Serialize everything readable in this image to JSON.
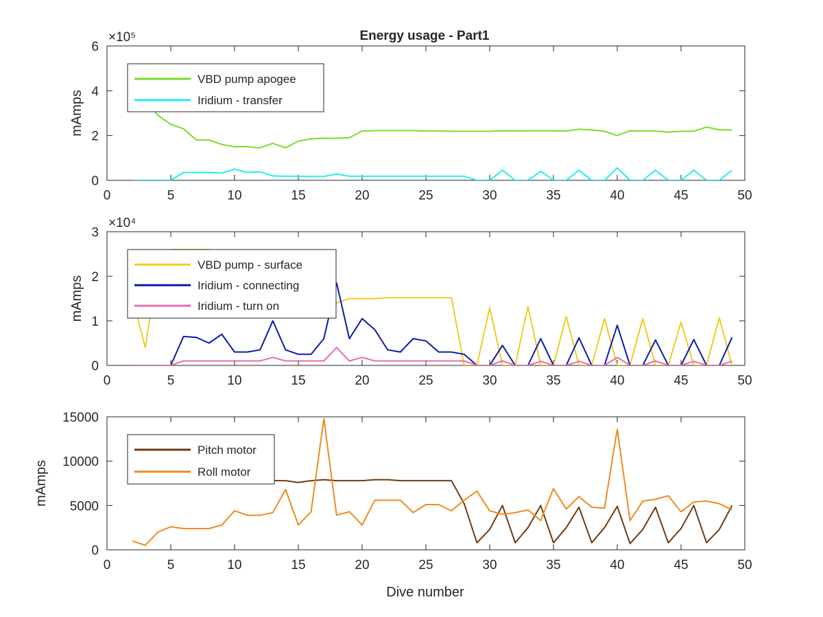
{
  "figure": {
    "title": "Energy usage - Part1",
    "xlabel": "Dive number"
  },
  "chart_data": [
    {
      "type": "line",
      "ylabel": "mAmps",
      "exponent_label": "×10⁵",
      "ylim": [
        0,
        600000
      ],
      "xlim": [
        0,
        50
      ],
      "xticks": [
        0,
        5,
        10,
        15,
        20,
        25,
        30,
        35,
        40,
        45,
        50
      ],
      "yticks": [
        0,
        200000,
        400000,
        600000
      ],
      "yticklabels": [
        "0",
        "2",
        "4",
        "6"
      ],
      "legend_position": "top-left",
      "series": [
        {
          "name": "VBD pump apogee",
          "color": "#77dd22",
          "x": [
            2,
            3,
            4,
            5,
            6,
            7,
            8,
            9,
            10,
            11,
            12,
            13,
            14,
            15,
            16,
            17,
            18,
            19,
            20,
            21,
            22,
            23,
            24,
            25,
            26,
            27,
            28,
            29,
            30,
            31,
            32,
            33,
            34,
            35,
            36,
            37,
            38,
            39,
            40,
            41,
            42,
            43,
            44,
            45,
            46,
            47,
            48,
            49
          ],
          "y": [
            430000,
            360000,
            290000,
            250000,
            230000,
            180000,
            180000,
            160000,
            150000,
            150000,
            145000,
            165000,
            145000,
            175000,
            185000,
            188000,
            188000,
            190000,
            220000,
            222000,
            222000,
            222000,
            222000,
            220000,
            220000,
            219000,
            219000,
            219000,
            219000,
            221000,
            220000,
            221000,
            221000,
            221000,
            220000,
            228000,
            225000,
            219000,
            200000,
            221000,
            220000,
            220000,
            215000,
            219000,
            219000,
            238000,
            225000,
            225000
          ]
        },
        {
          "name": "Iridium - transfer",
          "color": "#22eeee",
          "x": [
            2,
            3,
            4,
            5,
            6,
            7,
            8,
            9,
            10,
            11,
            12,
            13,
            14,
            15,
            16,
            17,
            18,
            19,
            20,
            21,
            22,
            23,
            24,
            25,
            26,
            27,
            28,
            29,
            30,
            31,
            32,
            33,
            34,
            35,
            36,
            37,
            38,
            39,
            40,
            41,
            42,
            43,
            44,
            45,
            46,
            47,
            48,
            49
          ],
          "y": [
            0,
            0,
            0,
            0,
            35000,
            35000,
            35000,
            32000,
            50000,
            35000,
            38000,
            20000,
            18000,
            18000,
            17000,
            17000,
            28000,
            18000,
            18000,
            18000,
            18000,
            18000,
            18000,
            18000,
            18000,
            18000,
            18000,
            0,
            0,
            45000,
            0,
            0,
            40000,
            0,
            0,
            45000,
            0,
            0,
            55000,
            0,
            0,
            45000,
            0,
            0,
            45000,
            0,
            0,
            45000
          ]
        }
      ]
    },
    {
      "type": "line",
      "ylabel": "mAmps",
      "exponent_label": "×10⁴",
      "ylim": [
        0,
        30000
      ],
      "xlim": [
        0,
        50
      ],
      "xticks": [
        0,
        5,
        10,
        15,
        20,
        25,
        30,
        35,
        40,
        45,
        50
      ],
      "yticks": [
        0,
        10000,
        20000,
        30000
      ],
      "yticklabels": [
        "0",
        "1",
        "2",
        "3"
      ],
      "legend_position": "top-left",
      "series": [
        {
          "name": "VBD pump - surface",
          "color": "#eecc22",
          "x": [
            2,
            3,
            4,
            5,
            6,
            7,
            8,
            9,
            10,
            11,
            12,
            13,
            14,
            15,
            16,
            17,
            18,
            19,
            20,
            21,
            22,
            23,
            24,
            25,
            26,
            27,
            28,
            29,
            30,
            31,
            32,
            33,
            34,
            35,
            36,
            37,
            38,
            39,
            40,
            41,
            42,
            43,
            44,
            45,
            46,
            47,
            48,
            49
          ],
          "y": [
            15000,
            4000,
            22000,
            26000,
            26000,
            26000,
            26000,
            25000,
            25000,
            25000,
            25000,
            25000,
            25000,
            25000,
            25000,
            14000,
            14000,
            15000,
            15000,
            15000,
            15200,
            15200,
            15200,
            15200,
            15200,
            15200,
            0,
            0,
            13000,
            0,
            0,
            13200,
            0,
            0,
            11000,
            0,
            0,
            10500,
            0,
            0,
            10500,
            0,
            0,
            9700,
            0,
            0,
            10700,
            0
          ]
        },
        {
          "name": "Iridium - connecting",
          "color": "#0a1aaa",
          "x": [
            2,
            3,
            4,
            5,
            6,
            7,
            8,
            9,
            10,
            11,
            12,
            13,
            14,
            15,
            16,
            17,
            18,
            19,
            20,
            21,
            22,
            23,
            24,
            25,
            26,
            27,
            28,
            29,
            30,
            31,
            32,
            33,
            34,
            35,
            36,
            37,
            38,
            39,
            40,
            41,
            42,
            43,
            44,
            45,
            46,
            47,
            48,
            49
          ],
          "y": [
            0,
            0,
            0,
            0,
            6500,
            6300,
            5000,
            7000,
            3000,
            3000,
            3500,
            10000,
            3500,
            2500,
            2500,
            6000,
            18500,
            6000,
            10500,
            8000,
            3500,
            3000,
            6000,
            5500,
            3000,
            3000,
            2500,
            0,
            0,
            4500,
            0,
            0,
            6000,
            0,
            0,
            6200,
            0,
            0,
            9000,
            0,
            0,
            5700,
            0,
            0,
            5800,
            0,
            0,
            6300
          ]
        },
        {
          "name": "Iridium - turn on",
          "color": "#e86ab0",
          "x": [
            2,
            3,
            4,
            5,
            6,
            7,
            8,
            9,
            10,
            11,
            12,
            13,
            14,
            15,
            16,
            17,
            18,
            19,
            20,
            21,
            22,
            23,
            24,
            25,
            26,
            27,
            28,
            29,
            30,
            31,
            32,
            33,
            34,
            35,
            36,
            37,
            38,
            39,
            40,
            41,
            42,
            43,
            44,
            45,
            46,
            47,
            48,
            49
          ],
          "y": [
            0,
            0,
            0,
            0,
            1000,
            1000,
            1000,
            1000,
            1000,
            1000,
            1000,
            1800,
            1000,
            1000,
            1000,
            1000,
            4000,
            1000,
            1800,
            1000,
            1000,
            1000,
            1000,
            1000,
            1000,
            1000,
            1000,
            0,
            0,
            1000,
            0,
            0,
            900,
            0,
            0,
            900,
            0,
            0,
            1800,
            0,
            0,
            1000,
            0,
            0,
            900,
            0,
            0,
            900
          ]
        }
      ]
    },
    {
      "type": "line",
      "ylabel": "mAmps",
      "ylim": [
        0,
        15000
      ],
      "xlim": [
        0,
        50
      ],
      "xticks": [
        0,
        5,
        10,
        15,
        20,
        25,
        30,
        35,
        40,
        45,
        50
      ],
      "yticks": [
        0,
        5000,
        10000,
        15000
      ],
      "yticklabels": [
        "0",
        "5000",
        "10000",
        "15000"
      ],
      "legend_position": "top-left",
      "series": [
        {
          "name": "Pitch motor",
          "color": "#6e3a10",
          "x": [
            2,
            3,
            4,
            5,
            6,
            7,
            8,
            9,
            10,
            11,
            12,
            13,
            14,
            15,
            16,
            17,
            18,
            19,
            20,
            21,
            22,
            23,
            24,
            25,
            26,
            27,
            28,
            29,
            30,
            31,
            32,
            33,
            34,
            35,
            36,
            37,
            38,
            39,
            40,
            41,
            42,
            43,
            44,
            45,
            46,
            47,
            48,
            49
          ],
          "y": [
            7800,
            7800,
            7800,
            7800,
            7800,
            7800,
            7800,
            7800,
            7800,
            7800,
            7800,
            7800,
            7800,
            7600,
            7800,
            7900,
            7800,
            7800,
            7800,
            7900,
            7900,
            7800,
            7800,
            7800,
            7800,
            7800,
            5200,
            800,
            2300,
            5000,
            800,
            2500,
            5000,
            800,
            2500,
            4800,
            800,
            2500,
            4900,
            700,
            2300,
            4800,
            800,
            2400,
            5000,
            800,
            2300,
            5000
          ]
        },
        {
          "name": "Roll motor",
          "color": "#ee8a1c",
          "x": [
            2,
            3,
            4,
            5,
            6,
            7,
            8,
            9,
            10,
            11,
            12,
            13,
            14,
            15,
            16,
            17,
            18,
            19,
            20,
            21,
            22,
            23,
            24,
            25,
            26,
            27,
            28,
            29,
            30,
            31,
            32,
            33,
            34,
            35,
            36,
            37,
            38,
            39,
            40,
            41,
            42,
            43,
            44,
            45,
            46,
            47,
            48,
            49
          ],
          "y": [
            1000,
            500,
            2000,
            2600,
            2400,
            2400,
            2400,
            2800,
            4400,
            3900,
            3900,
            4200,
            6800,
            2800,
            4300,
            14800,
            3900,
            4300,
            2800,
            5600,
            5600,
            5600,
            4200,
            5100,
            5100,
            4400,
            5600,
            6600,
            4400,
            4000,
            4200,
            4500,
            3300,
            6900,
            4600,
            6000,
            4800,
            4700,
            13600,
            3300,
            5500,
            5700,
            6100,
            4300,
            5400,
            5500,
            5200,
            4500
          ]
        }
      ]
    }
  ]
}
